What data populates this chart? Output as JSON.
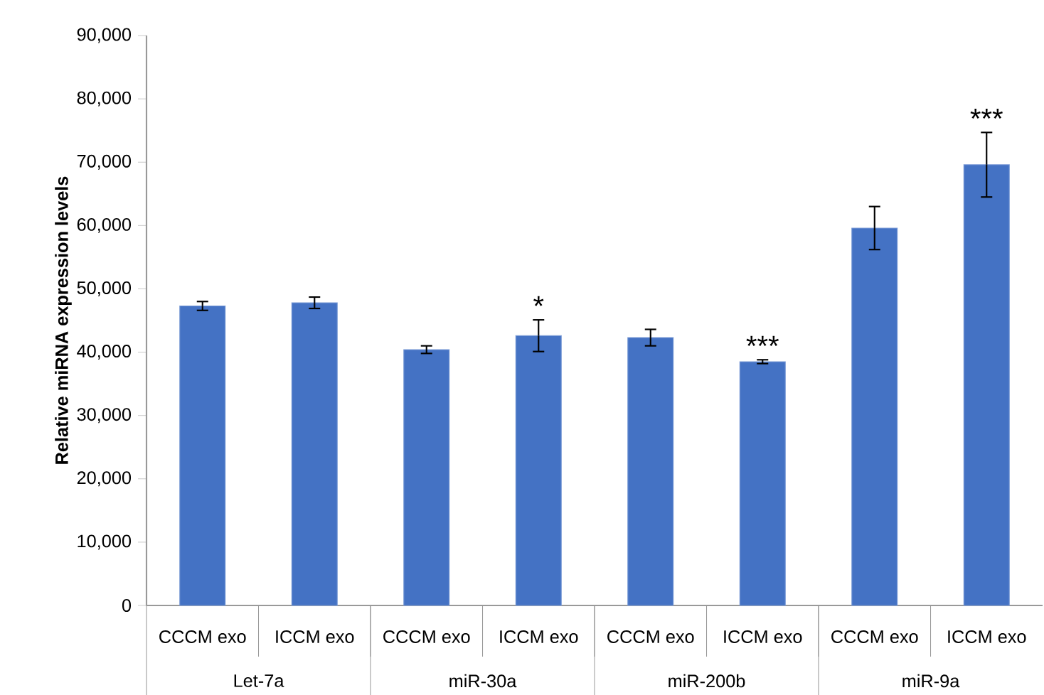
{
  "chart_data": {
    "type": "bar",
    "ylabel": "Relative miRNA expression levels",
    "categories": [
      "CCCM exo",
      "ICCM exo",
      "CCCM exo",
      "ICCM exo",
      "CCCM exo",
      "ICCM exo",
      "CCCM exo",
      "ICCM exo"
    ],
    "values": [
      47300,
      47800,
      40400,
      42600,
      42300,
      38500,
      59600,
      69600
    ],
    "errors": [
      700,
      900,
      600,
      2500,
      1300,
      300,
      3400,
      5100
    ],
    "value_labels": [
      null,
      null,
      null,
      "*",
      null,
      "***",
      null,
      "***"
    ],
    "annotations": [
      "Let-7a",
      "miR-30a",
      "miR-200b",
      "miR-9a"
    ],
    "color": "#4472c4",
    "ylim": [
      0,
      90000
    ],
    "yticks": [
      {
        "value": 0,
        "label": "0"
      },
      {
        "value": 10000,
        "label": "10,000"
      },
      {
        "value": 20000,
        "label": "20,000"
      },
      {
        "value": 30000,
        "label": "30,000"
      },
      {
        "value": 40000,
        "label": "40,000"
      },
      {
        "value": 50000,
        "label": "50,000"
      },
      {
        "value": 60000,
        "label": "60,000"
      },
      {
        "value": 70000,
        "label": "70,000"
      },
      {
        "value": 80000,
        "label": "80,000"
      },
      {
        "value": 90000,
        "label": "90,000"
      }
    ],
    "grid": false
  }
}
